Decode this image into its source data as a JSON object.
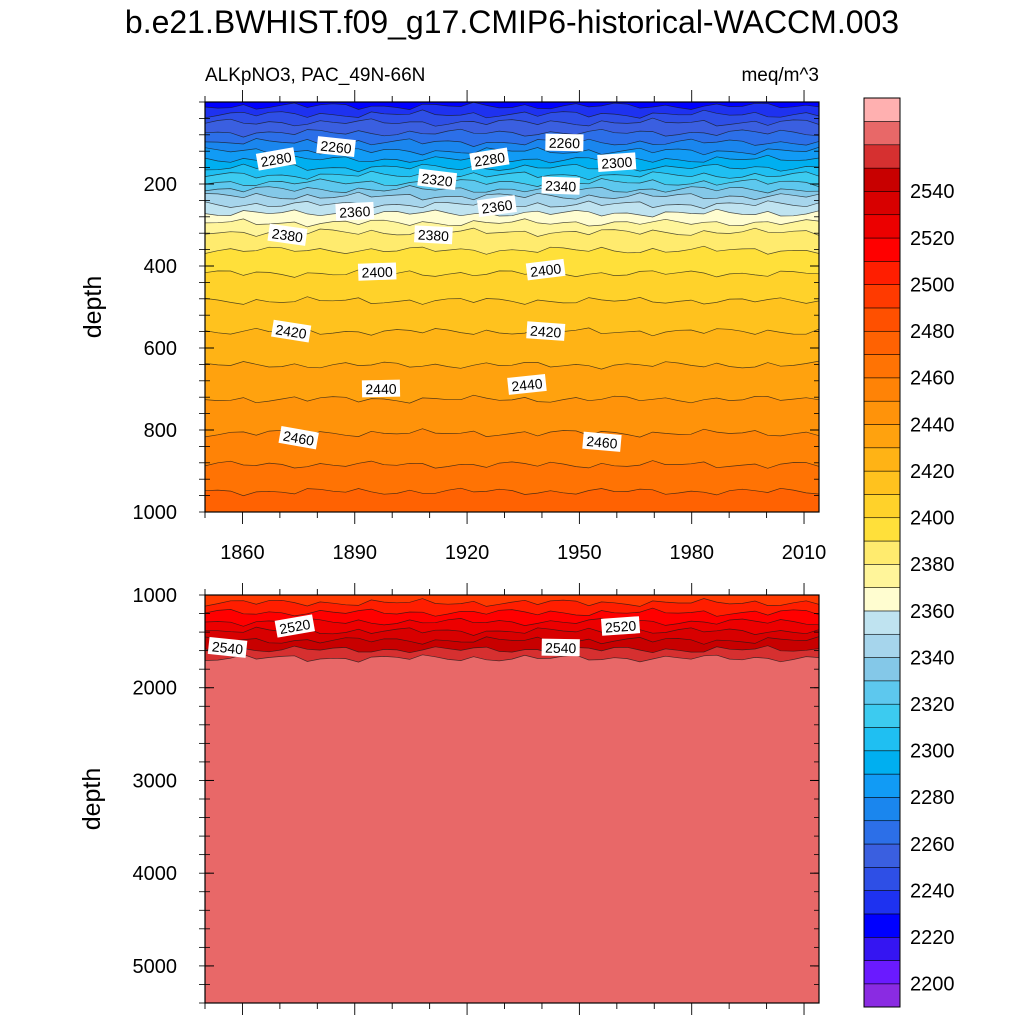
{
  "title": "b.e21.BWHIST.f09_g17.CMIP6-historical-WACCM.003",
  "chart_data": {
    "type": "contour",
    "variable": "ALKpNO3, PAC_49N-66N",
    "units": "meq/m^3",
    "x_ticks": [
      1860,
      1890,
      1920,
      1950,
      1980,
      2010
    ],
    "xlim": [
      1850,
      2014
    ],
    "panels": [
      {
        "name": "upper",
        "ylabel": "depth",
        "ylim": [
          0,
          1000
        ],
        "y_ticks": [
          200,
          400,
          600,
          800,
          1000
        ],
        "profile": [
          {
            "depth": 0,
            "value": 2225
          },
          {
            "depth": 20,
            "value": 2235
          },
          {
            "depth": 50,
            "value": 2250
          },
          {
            "depth": 80,
            "value": 2262
          },
          {
            "depth": 110,
            "value": 2275
          },
          {
            "depth": 140,
            "value": 2290
          },
          {
            "depth": 170,
            "value": 2305
          },
          {
            "depth": 200,
            "value": 2322
          },
          {
            "depth": 230,
            "value": 2340
          },
          {
            "depth": 260,
            "value": 2355
          },
          {
            "depth": 290,
            "value": 2368
          },
          {
            "depth": 320,
            "value": 2381
          },
          {
            "depth": 380,
            "value": 2394
          },
          {
            "depth": 450,
            "value": 2405
          },
          {
            "depth": 520,
            "value": 2415
          },
          {
            "depth": 600,
            "value": 2425
          },
          {
            "depth": 700,
            "value": 2437
          },
          {
            "depth": 800,
            "value": 2449
          },
          {
            "depth": 900,
            "value": 2462
          },
          {
            "depth": 1000,
            "value": 2478
          }
        ],
        "labels": [
          {
            "text": "2280",
            "year": 1869,
            "depth": 140
          },
          {
            "text": "2260",
            "year": 1885,
            "depth": 110
          },
          {
            "text": "2260",
            "year": 1946,
            "depth": 100
          },
          {
            "text": "2300",
            "year": 1960,
            "depth": 148
          },
          {
            "text": "2280",
            "year": 1926,
            "depth": 140
          },
          {
            "text": "2320",
            "year": 1912,
            "depth": 190
          },
          {
            "text": "2340",
            "year": 1945,
            "depth": 205
          },
          {
            "text": "2360",
            "year": 1890,
            "depth": 268
          },
          {
            "text": "2360",
            "year": 1928,
            "depth": 255
          },
          {
            "text": "2380",
            "year": 1872,
            "depth": 325
          },
          {
            "text": "2380",
            "year": 1911,
            "depth": 325
          },
          {
            "text": "2400",
            "year": 1896,
            "depth": 415
          },
          {
            "text": "2400",
            "year": 1941,
            "depth": 410
          },
          {
            "text": "2420",
            "year": 1873,
            "depth": 560
          },
          {
            "text": "2420",
            "year": 1941,
            "depth": 560
          },
          {
            "text": "2440",
            "year": 1897,
            "depth": 700
          },
          {
            "text": "2440",
            "year": 1936,
            "depth": 690
          },
          {
            "text": "2460",
            "year": 1875,
            "depth": 820
          },
          {
            "text": "2460",
            "year": 1956,
            "depth": 830
          }
        ]
      },
      {
        "name": "lower",
        "ylabel": "depth",
        "ylim": [
          1000,
          5400
        ],
        "y_ticks": [
          1000,
          2000,
          3000,
          4000,
          5000
        ],
        "profile": [
          {
            "depth": 1000,
            "value": 2490
          },
          {
            "depth": 1100,
            "value": 2502
          },
          {
            "depth": 1200,
            "value": 2511
          },
          {
            "depth": 1300,
            "value": 2521
          },
          {
            "depth": 1400,
            "value": 2531
          },
          {
            "depth": 1500,
            "value": 2541
          },
          {
            "depth": 1600,
            "value": 2551
          },
          {
            "depth": 1700,
            "value": 2562
          },
          {
            "depth": 5400,
            "value": 2565
          }
        ],
        "labels": [
          {
            "text": "2520",
            "year": 1874,
            "depth": 1340
          },
          {
            "text": "2540",
            "year": 1856,
            "depth": 1570
          },
          {
            "text": "2540",
            "year": 1945,
            "depth": 1570
          },
          {
            "text": "2520",
            "year": 1961,
            "depth": 1340
          }
        ]
      }
    ],
    "colorbar": {
      "tick_labels": [
        2200,
        2220,
        2240,
        2260,
        2280,
        2300,
        2320,
        2340,
        2360,
        2380,
        2400,
        2420,
        2440,
        2460,
        2480,
        2500,
        2520,
        2540
      ],
      "levels_min": 2190,
      "level_step": 10,
      "colors": [
        "#8a2be2",
        "#6a1aff",
        "#3515f2",
        "#0000ff",
        "#1e32f0",
        "#2e4fe6",
        "#3a5fe0",
        "#2c6fe8",
        "#1a86ee",
        "#119bf5",
        "#00aff0",
        "#1fbff2",
        "#3ccbf0",
        "#5dc8ee",
        "#84c8e8",
        "#a6d5ec",
        "#bfe3f0",
        "#fffdd0",
        "#fff59a",
        "#ffeb6e",
        "#ffe03a",
        "#ffd22a",
        "#ffc21e",
        "#ffb315",
        "#ffa20e",
        "#ff930a",
        "#ff8306",
        "#ff7304",
        "#ff6202",
        "#ff5000",
        "#ff3a00",
        "#ff1e00",
        "#ff0000",
        "#ec0000",
        "#d80000",
        "#c80000",
        "#d63030",
        "#e86868",
        "#ffb0b0"
      ]
    }
  }
}
